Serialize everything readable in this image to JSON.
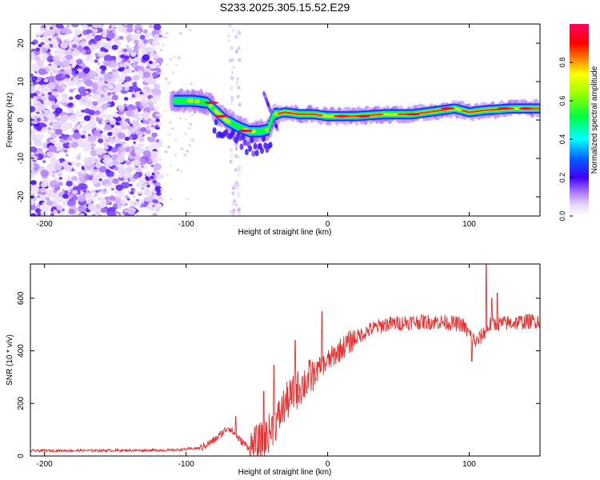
{
  "title": "S233.2025.305.15.52.E29",
  "chart_data": [
    {
      "type": "heatmap",
      "id": "spectrogram",
      "xlabel": "Height of straight line (km)",
      "ylabel": "Frequency (Hz)",
      "xlim": [
        -210,
        150
      ],
      "ylim": [
        -25,
        25
      ],
      "xticks": [
        -200,
        -100,
        0,
        100
      ],
      "yticks": [
        -20,
        -10,
        0,
        10,
        20
      ],
      "colorbar": {
        "label": "Normalized spectral amplitude",
        "range": [
          0,
          1
        ],
        "ticks": [
          0.0,
          0.2,
          0.4,
          0.6,
          0.8
        ],
        "stops": [
          "#ffffff",
          "#d8b8ff",
          "#8a2be2",
          "#0000ff",
          "#00ffff",
          "#00ff00",
          "#ffff00",
          "#ff8000",
          "#ff0000",
          "#ff0080"
        ]
      },
      "ridge": {
        "description_points": [
          [
            -108,
            5
          ],
          [
            -95,
            5
          ],
          [
            -85,
            4.5
          ],
          [
            -78,
            2
          ],
          [
            -72,
            0
          ],
          [
            -62,
            -2
          ],
          [
            -55,
            -3
          ],
          [
            -48,
            -3
          ],
          [
            -42,
            -2.5
          ],
          [
            -38,
            1.5
          ],
          [
            -30,
            2
          ],
          [
            -20,
            1.5
          ],
          [
            -10,
            1.5
          ],
          [
            0,
            1
          ],
          [
            20,
            1
          ],
          [
            40,
            1.5
          ],
          [
            60,
            1.5
          ],
          [
            80,
            2.5
          ],
          [
            90,
            3
          ],
          [
            100,
            2
          ],
          [
            110,
            2.5
          ],
          [
            130,
            3
          ],
          [
            150,
            3
          ]
        ],
        "peak_amplitude": 0.95
      }
    },
    {
      "type": "line",
      "id": "snr",
      "xlabel": "Height of straight line (km)",
      "ylabel": "SNR (10 * v/v)",
      "xlim": [
        -210,
        150
      ],
      "ylim": [
        0,
        730
      ],
      "xticks": [
        -200,
        -100,
        0,
        100
      ],
      "yticks": [
        0,
        200,
        400,
        600
      ],
      "series": [
        {
          "name": "SNR",
          "color": "#e83030",
          "trend": [
            [
              -210,
              20
            ],
            [
              -110,
              22
            ],
            [
              -90,
              30
            ],
            [
              -80,
              60
            ],
            [
              -70,
              110
            ],
            [
              -62,
              60
            ],
            [
              -55,
              30
            ],
            [
              -45,
              60
            ],
            [
              -35,
              140
            ],
            [
              -30,
              200
            ],
            [
              -20,
              260
            ],
            [
              -10,
              310
            ],
            [
              0,
              360
            ],
            [
              10,
              410
            ],
            [
              20,
              450
            ],
            [
              30,
              480
            ],
            [
              40,
              500
            ],
            [
              60,
              510
            ],
            [
              80,
              510
            ],
            [
              95,
              500
            ],
            [
              105,
              430
            ],
            [
              115,
              500
            ],
            [
              150,
              515
            ]
          ],
          "spikes": [
            [
              -65,
              150
            ],
            [
              -45,
              245
            ],
            [
              -38,
              345
            ],
            [
              -23,
              440
            ],
            [
              -4,
              550
            ],
            [
              102,
              360
            ],
            [
              112,
              730
            ],
            [
              116,
              600
            ],
            [
              120,
              620
            ]
          ]
        }
      ]
    }
  ]
}
